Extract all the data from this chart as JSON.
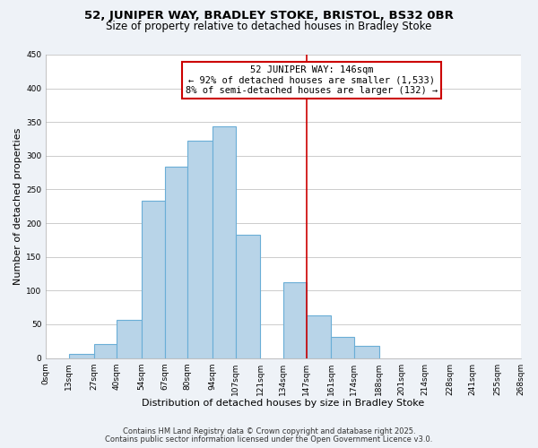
{
  "title": "52, JUNIPER WAY, BRADLEY STOKE, BRISTOL, BS32 0BR",
  "subtitle": "Size of property relative to detached houses in Bradley Stoke",
  "xlabel": "Distribution of detached houses by size in Bradley Stoke",
  "ylabel": "Number of detached properties",
  "bar_edges": [
    0,
    13,
    27,
    40,
    54,
    67,
    80,
    94,
    107,
    121,
    134,
    147,
    161,
    174,
    188,
    201,
    214,
    228,
    241,
    255,
    268
  ],
  "bar_heights": [
    0,
    6,
    21,
    57,
    233,
    284,
    323,
    344,
    183,
    0,
    112,
    63,
    32,
    18,
    0,
    0,
    0,
    0,
    0,
    0
  ],
  "bar_color": "#b8d4e8",
  "bar_edgecolor": "#6aaed6",
  "bar_linewidth": 0.8,
  "vline_x": 147,
  "vline_color": "#cc0000",
  "ylim": [
    0,
    450
  ],
  "tick_labels": [
    "0sqm",
    "13sqm",
    "27sqm",
    "40sqm",
    "54sqm",
    "67sqm",
    "80sqm",
    "94sqm",
    "107sqm",
    "121sqm",
    "134sqm",
    "147sqm",
    "161sqm",
    "174sqm",
    "188sqm",
    "201sqm",
    "214sqm",
    "228sqm",
    "241sqm",
    "255sqm",
    "268sqm"
  ],
  "annotation_title": "52 JUNIPER WAY: 146sqm",
  "annotation_line1": "← 92% of detached houses are smaller (1,533)",
  "annotation_line2": "8% of semi-detached houses are larger (132) →",
  "footnote1": "Contains HM Land Registry data © Crown copyright and database right 2025.",
  "footnote2": "Contains public sector information licensed under the Open Government Licence v3.0.",
  "bg_color": "#eef2f7",
  "plot_bg_color": "#ffffff",
  "grid_color": "#cccccc",
  "title_fontsize": 9.5,
  "subtitle_fontsize": 8.5,
  "label_fontsize": 8,
  "tick_fontsize": 6.5,
  "footnote_fontsize": 6,
  "annotation_fontsize": 7.5,
  "yticks": [
    0,
    50,
    100,
    150,
    200,
    250,
    300,
    350,
    400,
    450
  ]
}
